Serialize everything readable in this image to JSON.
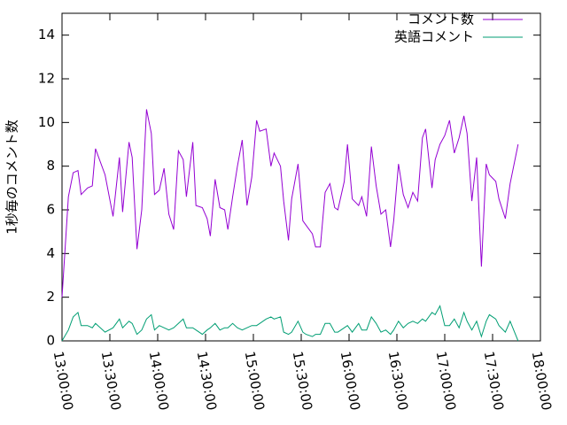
{
  "chart_data": {
    "type": "line",
    "ylabel": "1秒毎のコメント数",
    "x": [
      "13:00:00",
      "13:04:00",
      "13:07:00",
      "13:10:00",
      "13:12:00",
      "13:16:00",
      "13:19:00",
      "13:21:00",
      "13:27:00",
      "13:32:00",
      "13:36:00",
      "13:38:00",
      "13:42:00",
      "13:44:00",
      "13:47:00",
      "13:50:00",
      "13:53:00",
      "13:56:00",
      "13:58:00",
      "14:01:00",
      "14:04:00",
      "14:07:00",
      "14:10:00",
      "14:13:00",
      "14:16:00",
      "14:18:00",
      "14:22:00",
      "14:24:00",
      "14:28:00",
      "14:31:00",
      "14:33:00",
      "14:36:00",
      "14:39:00",
      "14:42:00",
      "14:44:00",
      "14:47:00",
      "14:50:00",
      "14:53:00",
      "14:56:00",
      "14:59:00",
      "15:02:00",
      "15:04:00",
      "15:08:00",
      "15:11:00",
      "15:13:00",
      "15:17:00",
      "15:19:00",
      "15:22:00",
      "15:24:00",
      "15:28:00",
      "15:31:00",
      "15:33:00",
      "15:37:00",
      "15:39:00",
      "15:42:00",
      "15:45:00",
      "15:48:00",
      "15:51:00",
      "15:53:00",
      "15:57:00",
      "15:59:00",
      "16:02:00",
      "16:06:00",
      "16:08:00",
      "16:11:00",
      "16:14:00",
      "16:17:00",
      "16:20:00",
      "16:23:00",
      "16:26:00",
      "16:28:00",
      "16:31:00",
      "16:34:00",
      "16:37:00",
      "16:40:00",
      "16:43:00",
      "16:46:00",
      "16:48:00",
      "16:52:00",
      "16:54:00",
      "16:57:00",
      "17:00:00",
      "17:03:00",
      "17:06:00",
      "17:09:00",
      "17:12:00",
      "17:14:00",
      "17:17:00",
      "17:20:00",
      "17:23:00",
      "17:26:00",
      "17:28:00",
      "17:32:00",
      "17:34:00",
      "17:38:00",
      "17:41:00",
      "17:46:00"
    ],
    "series": [
      {
        "name": "コメント数",
        "color": "#9400d3",
        "values": [
          2.0,
          6.6,
          7.7,
          7.8,
          6.7,
          7.0,
          7.1,
          8.8,
          7.6,
          5.7,
          8.4,
          5.9,
          9.1,
          8.4,
          4.2,
          6.0,
          10.6,
          9.5,
          6.7,
          6.9,
          7.9,
          5.8,
          5.1,
          8.7,
          8.3,
          6.6,
          9.1,
          6.2,
          6.1,
          5.6,
          4.8,
          7.4,
          6.1,
          6.0,
          5.1,
          6.6,
          8.0,
          9.2,
          6.2,
          7.5,
          10.1,
          9.6,
          9.7,
          8.0,
          8.6,
          8.0,
          6.4,
          4.6,
          6.5,
          8.1,
          5.5,
          5.3,
          4.9,
          4.3,
          4.3,
          6.8,
          7.2,
          6.1,
          6.0,
          7.3,
          9.0,
          6.5,
          6.2,
          6.6,
          5.7,
          8.9,
          7.1,
          5.8,
          6.0,
          4.3,
          5.5,
          8.1,
          6.7,
          6.1,
          6.8,
          6.4,
          9.3,
          9.7,
          7.0,
          8.3,
          9.0,
          9.4,
          10.1,
          8.6,
          9.3,
          10.3,
          9.5,
          6.4,
          8.4,
          3.4,
          8.1,
          7.6,
          7.3,
          6.5,
          5.6,
          7.2,
          9.0
        ]
      },
      {
        "name": "英語コメント",
        "color": "#009e73",
        "values": [
          0.0,
          0.5,
          1.1,
          1.3,
          0.7,
          0.7,
          0.6,
          0.8,
          0.4,
          0.6,
          1.0,
          0.6,
          0.9,
          0.8,
          0.3,
          0.5,
          1.0,
          1.2,
          0.5,
          0.7,
          0.6,
          0.5,
          0.6,
          0.8,
          1.0,
          0.6,
          0.6,
          0.5,
          0.3,
          0.5,
          0.6,
          0.8,
          0.5,
          0.6,
          0.6,
          0.8,
          0.6,
          0.5,
          0.6,
          0.7,
          0.7,
          0.8,
          1.0,
          1.1,
          1.0,
          1.1,
          0.4,
          0.3,
          0.4,
          0.9,
          0.4,
          0.3,
          0.2,
          0.3,
          0.3,
          0.8,
          0.8,
          0.4,
          0.4,
          0.6,
          0.7,
          0.4,
          0.8,
          0.5,
          0.5,
          1.1,
          0.8,
          0.4,
          0.5,
          0.3,
          0.5,
          0.9,
          0.6,
          0.8,
          0.9,
          0.8,
          1.0,
          0.9,
          1.3,
          1.2,
          1.6,
          0.7,
          0.7,
          1.0,
          0.6,
          1.3,
          0.9,
          0.5,
          0.9,
          0.2,
          0.9,
          1.2,
          1.0,
          0.7,
          0.4,
          0.9,
          0.0
        ]
      }
    ],
    "xlim": [
      "13:00:00",
      "18:00:00"
    ],
    "xticks": [
      "13:00:00",
      "13:30:00",
      "14:00:00",
      "14:30:00",
      "15:00:00",
      "15:30:00",
      "16:00:00",
      "16:30:00",
      "17:00:00",
      "17:30:00",
      "18:00:00"
    ],
    "ylim": [
      0,
      15
    ],
    "yticks": [
      0,
      2,
      4,
      6,
      8,
      10,
      12,
      14
    ],
    "legend": "top-right"
  }
}
